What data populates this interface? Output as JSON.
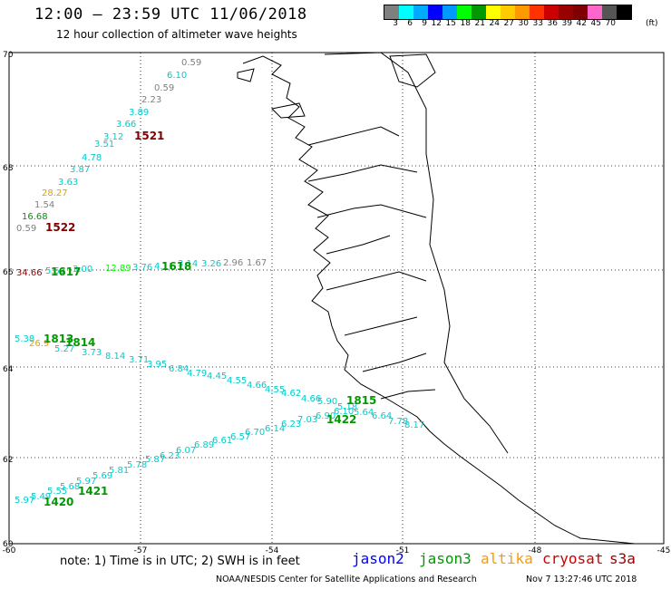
{
  "header": {
    "title": "12:00 – 23:59 UTC 11/06/2018",
    "subtitle": "12 hour collection of altimeter wave heights"
  },
  "legend": {
    "colors": [
      "#7f7f7f",
      "#00ffff",
      "#00aaff",
      "#0000ff",
      "#0099ff",
      "#00ff00",
      "#009900",
      "#ffff00",
      "#ffcc00",
      "#ff9900",
      "#ff3300",
      "#cc0000",
      "#990000",
      "#800000",
      "#ff66cc",
      "#555555",
      "#000000"
    ],
    "labels": [
      "3",
      "6",
      "9",
      "12",
      "15",
      "18",
      "21",
      "24",
      "27",
      "30",
      "33",
      "36",
      "39",
      "42",
      "45",
      "70"
    ],
    "unit": "(ft)"
  },
  "axes": {
    "lat_labels": [
      "70",
      "68",
      "66",
      "64",
      "62",
      "60"
    ],
    "lon_labels": [
      "-60",
      "-57",
      "-54",
      "-51",
      "-48",
      "-45"
    ]
  },
  "tracks": {
    "t1": [
      "0.59",
      "6.10",
      "0.59",
      "2.23",
      "3.89",
      "3.66",
      "3.12",
      "3.51",
      "4.78",
      "3.87",
      "3.63",
      "28.27",
      "1.54",
      "16.68",
      "0.59"
    ],
    "t1_colors": [
      "#7f7f7f",
      "#00cccc",
      "#7f7f7f",
      "#7f7f7f",
      "#00cccc",
      "#00cccc",
      "#00cccc",
      "#00cccc",
      "#00cccc",
      "#00cccc",
      "#00cccc",
      "#e0a000",
      "#7f7f7f",
      "#009900",
      "#7f7f7f"
    ],
    "t1_times": [
      "1521",
      "1522"
    ],
    "t2": [
      "34.66",
      "5.51",
      "3.00",
      "12.89",
      "3.76",
      "4.11",
      "3.14",
      "3.26",
      "2.96",
      "1.67"
    ],
    "t2_colors": [
      "#990000",
      "#00cccc",
      "#00cccc",
      "#00ff00",
      "#00cccc",
      "#00cccc",
      "#00cccc",
      "#00cccc",
      "#7f7f7f",
      "#7f7f7f"
    ],
    "t2_times": [
      "1617",
      "1618"
    ],
    "t3": [
      "5.38",
      "26.9",
      "5.27",
      "3.73",
      "8.14",
      "3.71",
      "3.95",
      "6.84",
      "4.79",
      "4.45",
      "4.55",
      "4.66",
      "4.55",
      "4.62",
      "4.66",
      "5.90",
      "5.18",
      "5.64",
      "6.64",
      "7.78",
      "8.17"
    ],
    "t3_colors": [
      "#00cccc",
      "#e0a000",
      "#00cccc",
      "#00cccc",
      "#00cccc",
      "#00cccc",
      "#00cccc",
      "#00cccc",
      "#00cccc",
      "#00cccc",
      "#00cccc",
      "#00cccc",
      "#00cccc",
      "#00cccc",
      "#00cccc",
      "#00cccc",
      "#00cccc",
      "#00cccc",
      "#00cccc",
      "#00cccc",
      "#00cccc"
    ],
    "t3_times": [
      "1813",
      "1814",
      "1815"
    ],
    "t4": [
      "5.97",
      "5.49",
      "5.55",
      "5.68",
      "5.97",
      "5.69",
      "5.81",
      "5.78",
      "5.87",
      "6.23",
      "6.07",
      "6.89",
      "6.61",
      "6.57",
      "6.70",
      "6.14",
      "6.23",
      "7.03",
      "6.90",
      "6.10"
    ],
    "t4_colors": [
      "#00cccc",
      "#00cccc",
      "#00cccc",
      "#00cccc",
      "#00cccc",
      "#00cccc",
      "#00cccc",
      "#00cccc",
      "#00cccc",
      "#00cccc",
      "#00cccc",
      "#00cccc",
      "#00cccc",
      "#00cccc",
      "#00cccc",
      "#00cccc",
      "#00cccc",
      "#00cccc",
      "#00cccc",
      "#00cccc"
    ],
    "t4_times": [
      "1420",
      "1421",
      "1422"
    ]
  },
  "footer": {
    "note": "note: 1) Time is in UTC; 2) SWH is in feet",
    "satellites": [
      {
        "name": "jason2",
        "color": "#0000ff"
      },
      {
        "name": "jason3",
        "color": "#009900"
      },
      {
        "name": "altika",
        "color": "#ff9900"
      },
      {
        "name": "cryosat",
        "color": "#cc0000"
      },
      {
        "name": "s3a",
        "color": "#990000"
      }
    ],
    "credit": "NOAA/NESDIS Center for Satellite Applications and Research",
    "date": "Nov  7 13:27:46 UTC 2018"
  }
}
